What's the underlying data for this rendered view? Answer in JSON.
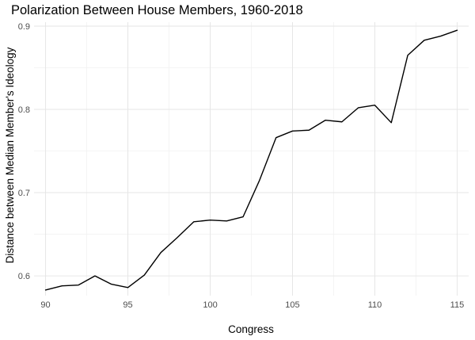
{
  "chart_data": {
    "type": "line",
    "title": "Polarization Between House Members, 1960-2018",
    "xlabel": "Congress",
    "ylabel": "Distance between Median Member's Ideology",
    "x": [
      90,
      91,
      92,
      93,
      94,
      95,
      96,
      97,
      98,
      99,
      100,
      101,
      102,
      103,
      104,
      105,
      106,
      107,
      108,
      109,
      110,
      111,
      112,
      113,
      114,
      115
    ],
    "y": [
      0.583,
      0.588,
      0.589,
      0.6,
      0.59,
      0.586,
      0.601,
      0.628,
      0.646,
      0.665,
      0.667,
      0.666,
      0.671,
      0.715,
      0.766,
      0.774,
      0.775,
      0.787,
      0.785,
      0.802,
      0.805,
      0.784,
      0.865,
      0.883,
      0.888,
      0.895
    ],
    "xlim": [
      89.3,
      115.7
    ],
    "ylim": [
      0.5763,
      0.9047
    ],
    "x_ticks": [
      90,
      95,
      100,
      105,
      110,
      115
    ],
    "y_ticks": [
      0.6,
      0.7,
      0.8,
      0.9
    ],
    "x_tick_labels": [
      "90",
      "95",
      "100",
      "105",
      "110",
      "115"
    ],
    "y_tick_labels": [
      "0.6",
      "0.7",
      "0.8",
      "0.9"
    ],
    "grid": true,
    "line_color": "#000000",
    "grid_color": "#e6e6e6"
  }
}
